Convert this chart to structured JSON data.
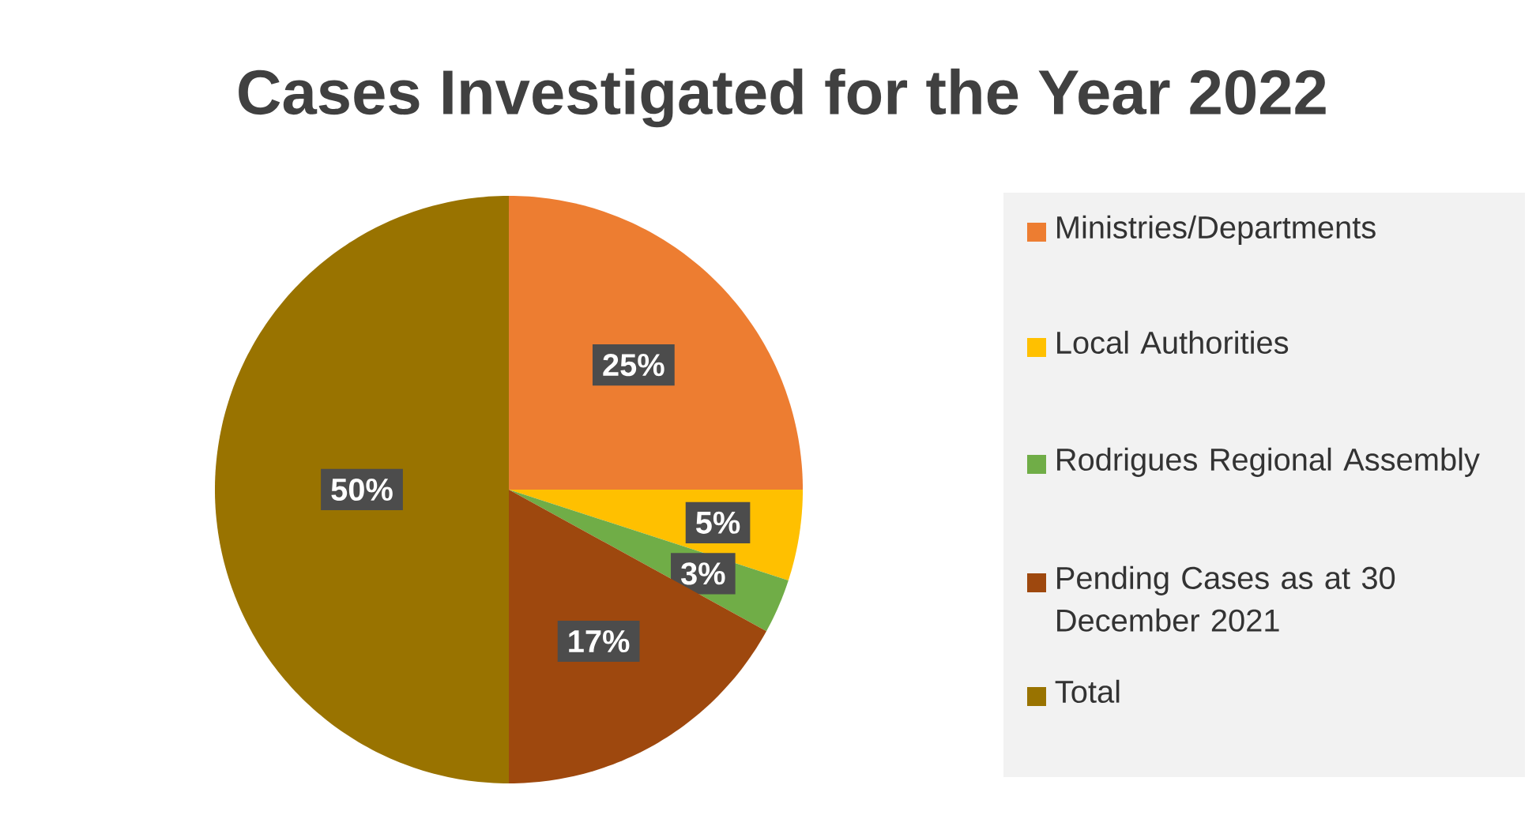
{
  "chart_data": {
    "type": "pie",
    "title": "Cases Investigated for the Year 2022",
    "categories": [
      "Ministries/Departments",
      "Local Authorities",
      "Rodrigues Regional Assembly",
      "Pending Cases as at 30 December 2021",
      "Total"
    ],
    "values": [
      25,
      5,
      3,
      17,
      50
    ],
    "colors": [
      "#ed7d31",
      "#ffc000",
      "#70ad47",
      "#9e480e",
      "#997300"
    ],
    "value_labels": [
      "25%",
      "5%",
      "3%",
      "17%",
      "50%"
    ],
    "legend": "right"
  }
}
